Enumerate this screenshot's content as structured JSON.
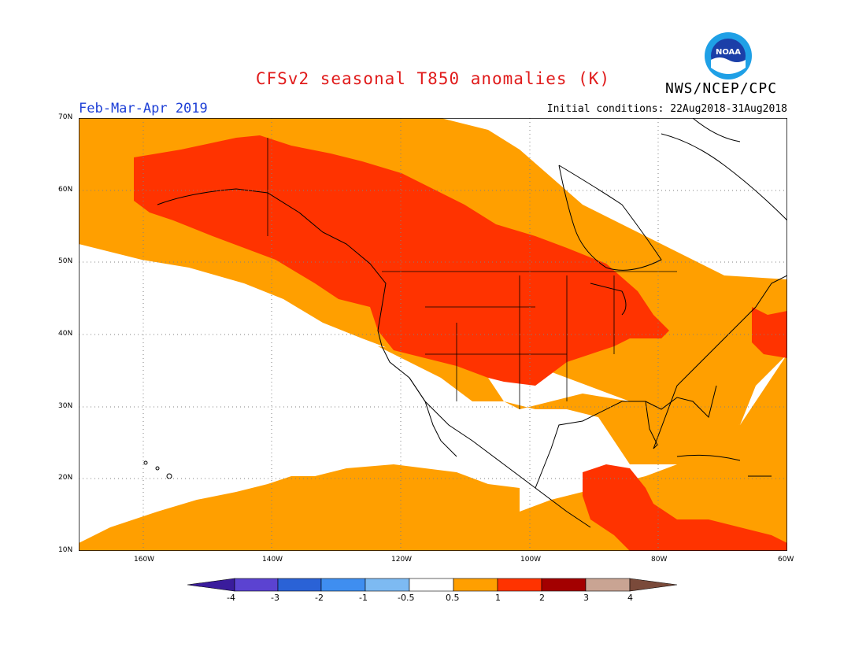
{
  "title": "CFSv2 seasonal T850 anomalies (K)",
  "agency": "NWS/NCEP/CPC",
  "logo_text": "NOAA",
  "season": "Feb-Mar-Apr 2019",
  "initial_conditions": "Initial conditions: 22Aug2018-31Aug2018",
  "map": {
    "lon_labels": [
      "160W",
      "140W",
      "120W",
      "100W",
      "80W",
      "60W"
    ],
    "lat_labels": [
      "70N",
      "60N",
      "50N",
      "40N",
      "30N",
      "20N",
      "10N"
    ],
    "lon_range": [
      -170,
      -60
    ],
    "lat_range": [
      10,
      70
    ],
    "grid": true
  },
  "colorbar": {
    "labels": [
      "-4",
      "-3",
      "-2",
      "-1",
      "-0.5",
      "0.5",
      "1",
      "2",
      "3",
      "4"
    ],
    "colors": [
      "#3a1c9c",
      "#5b43d1",
      "#2a62d6",
      "#3f8ef0",
      "#7dbaf2",
      "#ffffff",
      "#ff9f00",
      "#ff3300",
      "#a30000",
      "#c9a493",
      "#7a4a3a"
    ]
  },
  "legend_colors": {
    "anom_0_5_to_1": "#ff9f00",
    "anom_1_to_2": "#ff3300",
    "neutral": "#ffffff",
    "land_outline": "#000000"
  }
}
